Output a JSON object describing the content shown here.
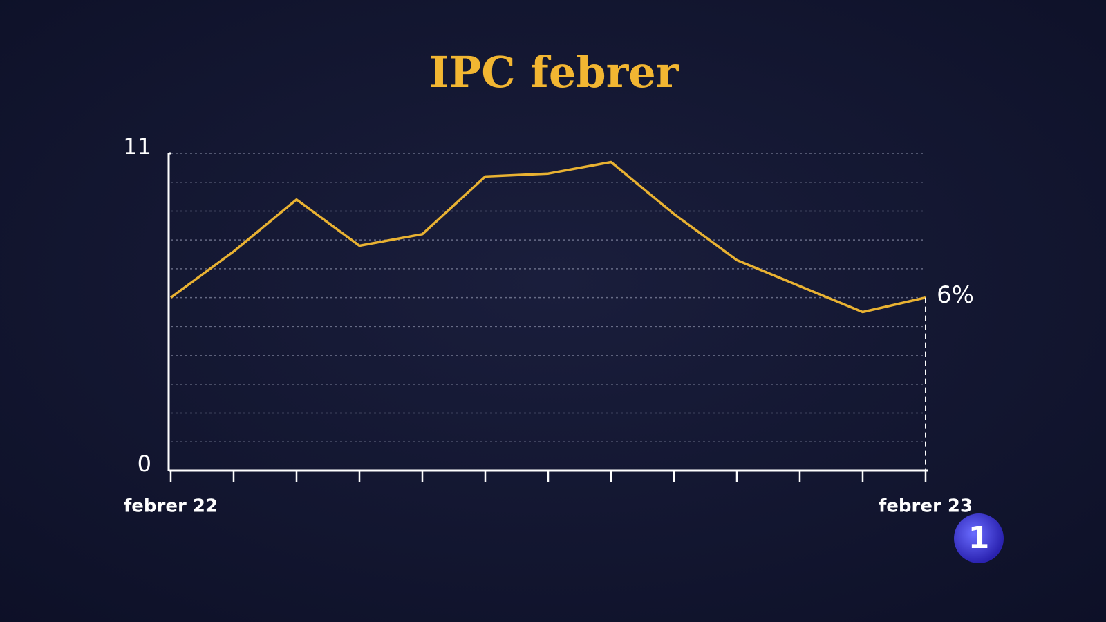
{
  "chart_data": {
    "type": "line",
    "title": "IPC febrer",
    "categories": [
      "febrer 22",
      null,
      null,
      null,
      null,
      null,
      null,
      null,
      null,
      null,
      null,
      null,
      "febrer 23"
    ],
    "series": [
      {
        "color": "#e9b232",
        "values": [
          6.0,
          7.6,
          9.4,
          7.8,
          8.2,
          10.2,
          10.3,
          10.7,
          8.9,
          7.3,
          6.4,
          5.5,
          6.0
        ],
        "value_labels": [
          null,
          null,
          null,
          null,
          null,
          null,
          null,
          null,
          null,
          null,
          null,
          null,
          "6%"
        ]
      }
    ],
    "ylim": [
      0,
      11
    ],
    "yticks": [
      0,
      11
    ],
    "ygrid": [
      1,
      2,
      3,
      4,
      5,
      6,
      7,
      8,
      9,
      10,
      11
    ],
    "grid": true
  },
  "logo": "1"
}
